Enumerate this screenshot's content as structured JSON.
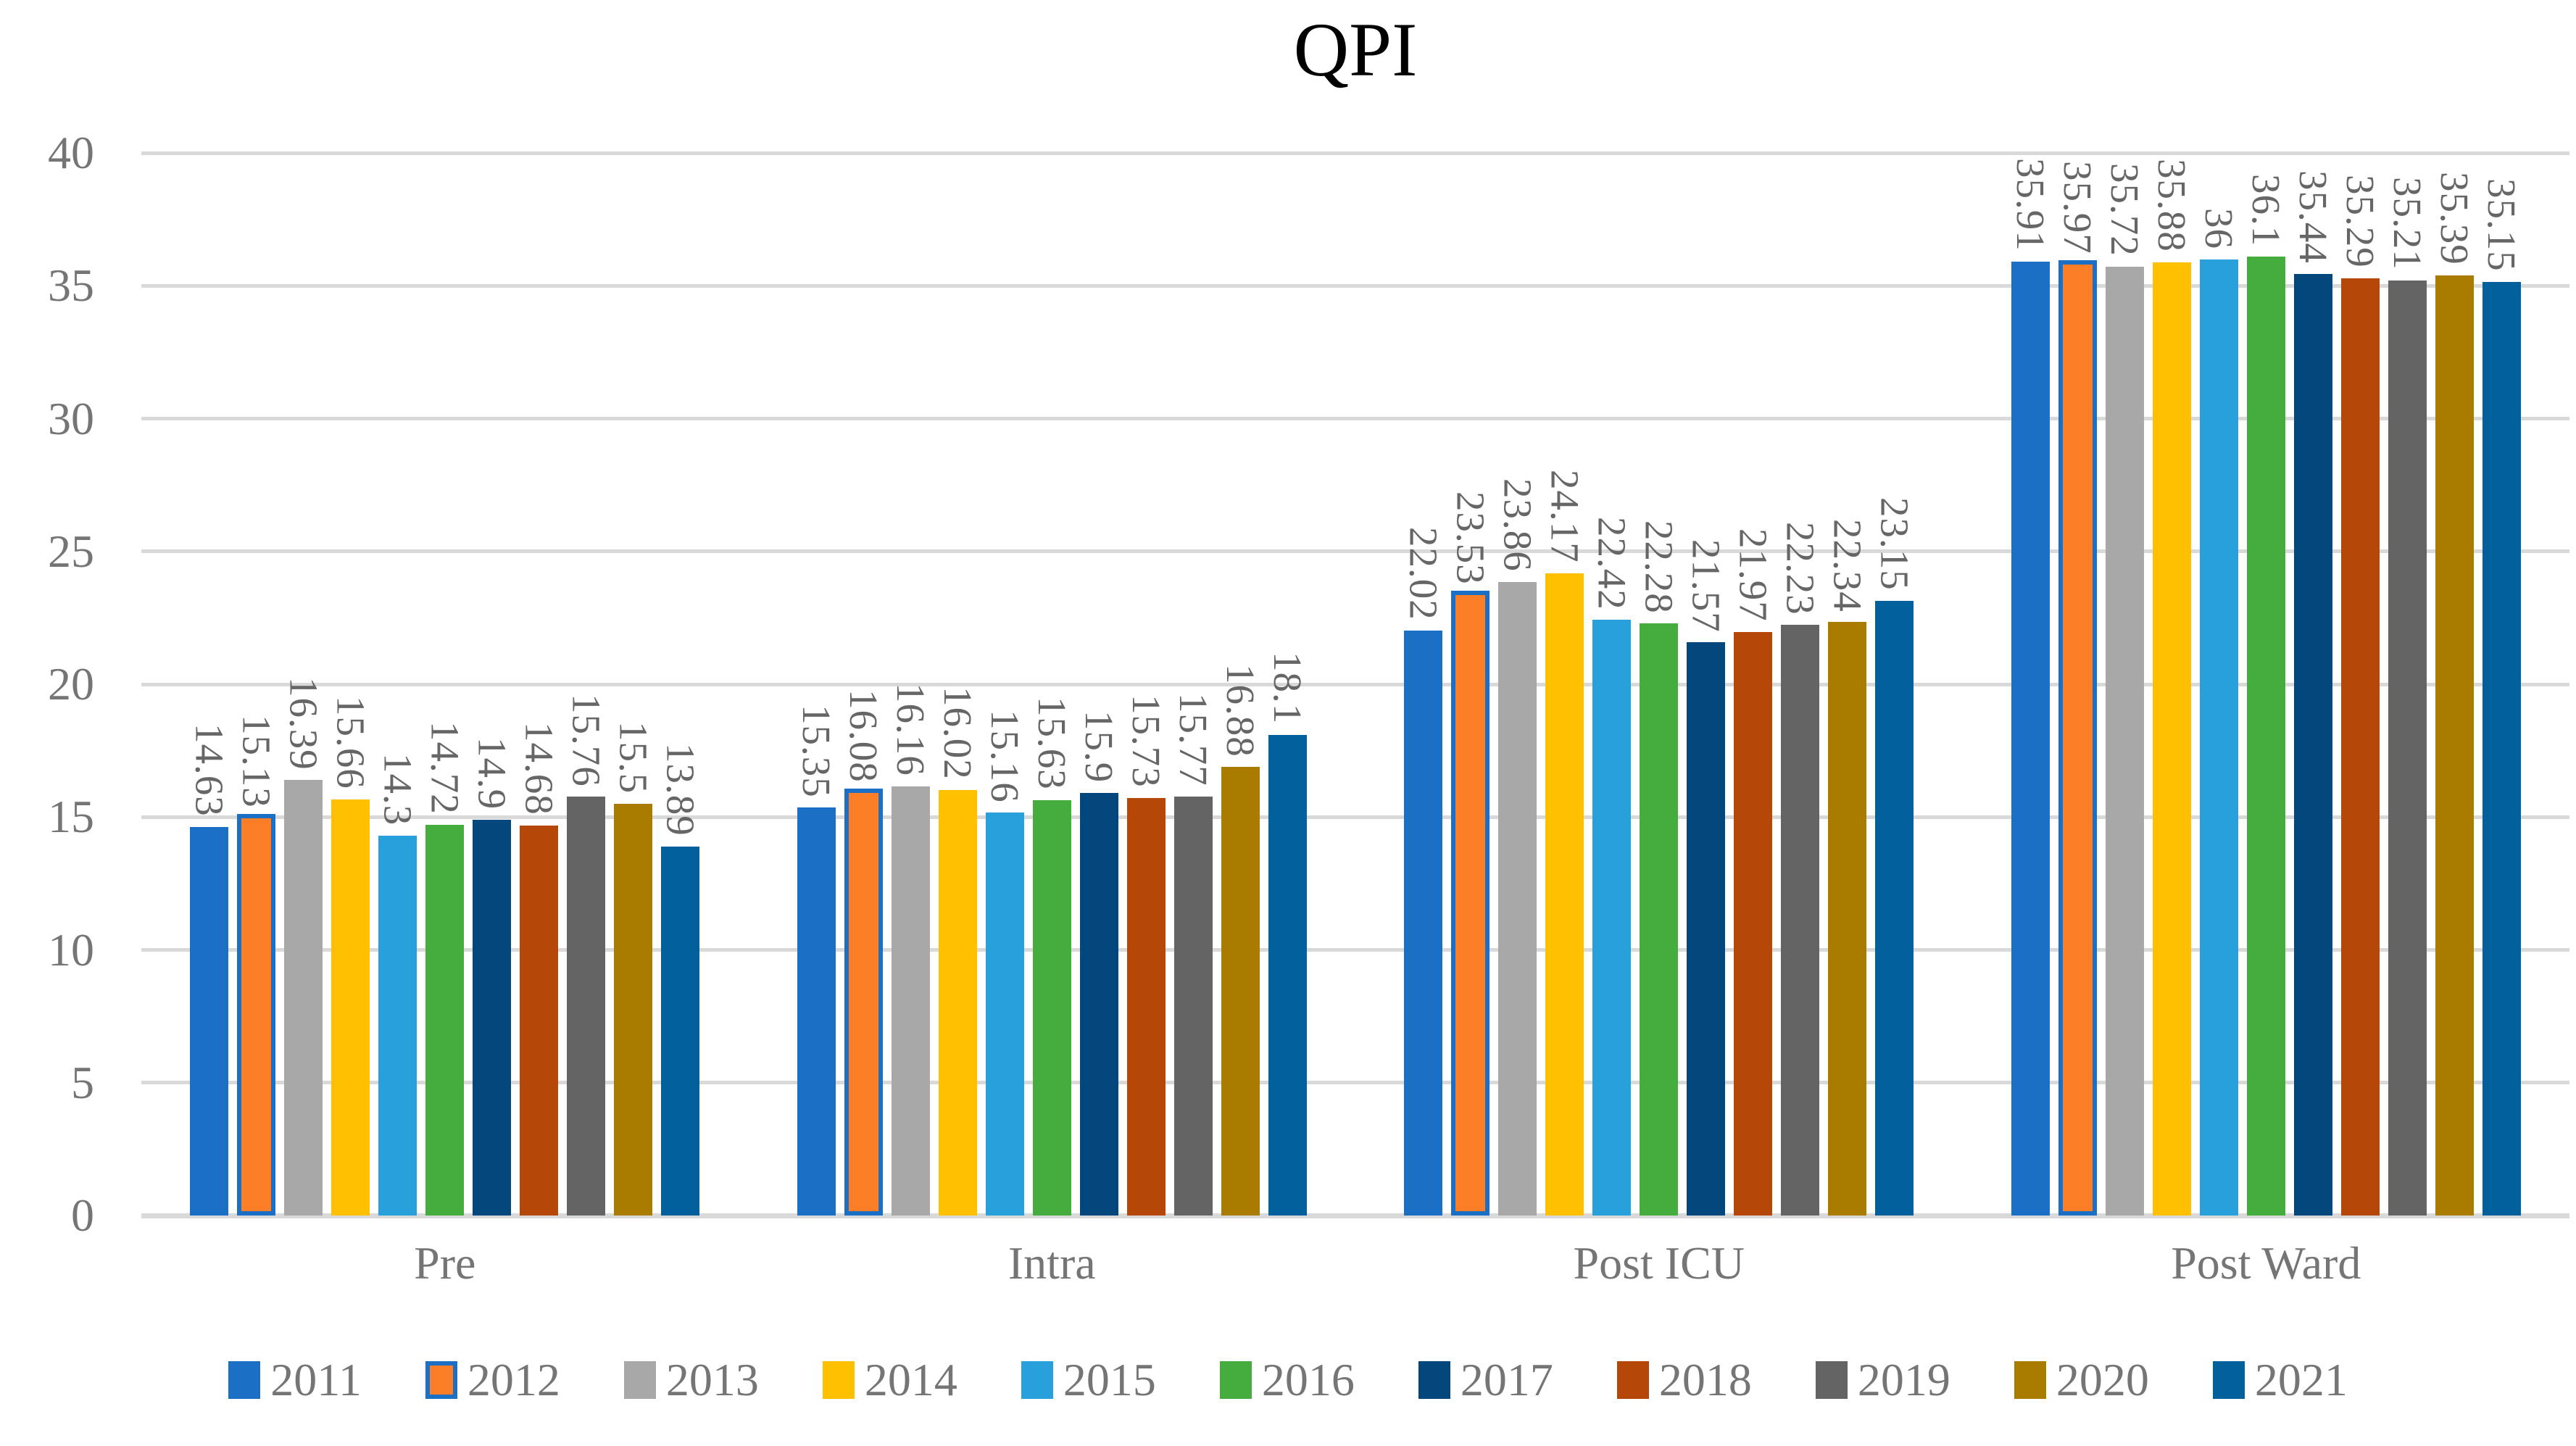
{
  "chart_data": {
    "type": "bar",
    "title": "QPI",
    "categories": [
      "Pre",
      "Intra",
      "Post ICU",
      "Post Ward"
    ],
    "series": [
      {
        "name": "2011",
        "color": "#1B70C6",
        "values": [
          14.63,
          15.35,
          22.02,
          35.91
        ]
      },
      {
        "name": "2012",
        "color": "#FC7E26",
        "outline": "#1B70C6",
        "values": [
          15.13,
          16.08,
          23.53,
          35.97
        ]
      },
      {
        "name": "2013",
        "color": "#A8A8A8",
        "values": [
          16.39,
          16.16,
          23.86,
          35.72
        ]
      },
      {
        "name": "2014",
        "color": "#FEC000",
        "values": [
          15.66,
          16.02,
          24.17,
          35.88
        ]
      },
      {
        "name": "2015",
        "color": "#27A0DB",
        "values": [
          14.3,
          15.16,
          22.42,
          36
        ]
      },
      {
        "name": "2016",
        "color": "#45AD3D",
        "values": [
          14.72,
          15.63,
          22.28,
          36.1
        ]
      },
      {
        "name": "2017",
        "color": "#04477C",
        "values": [
          14.9,
          15.9,
          21.57,
          35.44
        ]
      },
      {
        "name": "2018",
        "color": "#B54708",
        "values": [
          14.68,
          15.73,
          21.97,
          35.29
        ]
      },
      {
        "name": "2019",
        "color": "#646464",
        "values": [
          15.76,
          15.77,
          22.23,
          35.21
        ]
      },
      {
        "name": "2020",
        "color": "#A97C00",
        "values": [
          15.5,
          16.88,
          22.34,
          35.39
        ]
      },
      {
        "name": "2021",
        "color": "#02609C",
        "values": [
          13.89,
          18.1,
          23.15,
          35.15
        ]
      }
    ],
    "highlighted_series": "2012",
    "y_axis": {
      "min": 0,
      "max": 40,
      "step": 5,
      "ticks": [
        "0",
        "5",
        "10",
        "15",
        "20",
        "25",
        "30",
        "35",
        "40"
      ]
    },
    "grid": true,
    "legend_position": "bottom",
    "data_labels": "outside-end-rotated",
    "colors_meta": {
      "gridline": "#D9D9D9",
      "axis_text": "#757575",
      "data_label_text": "#666666",
      "title_text": "#000000",
      "background": "#FFFFFF"
    }
  }
}
